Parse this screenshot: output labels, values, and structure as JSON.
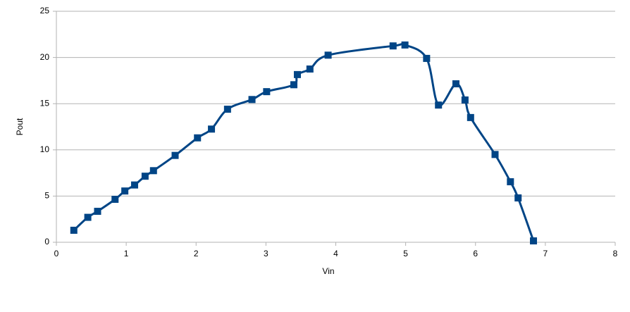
{
  "chart_data": {
    "type": "line",
    "x_label": "Vin",
    "y_label": "Pout",
    "x": [
      0.25,
      0.45,
      0.59,
      0.84,
      0.98,
      1.12,
      1.27,
      1.39,
      1.7,
      2.02,
      2.22,
      2.45,
      2.8,
      3.01,
      3.4,
      3.45,
      3.63,
      3.89,
      4.82,
      4.99,
      5.3,
      5.47,
      5.72,
      5.85,
      5.93,
      6.28,
      6.5,
      6.61,
      6.83
    ],
    "series": [
      {
        "color": "#004586",
        "values": [
          1.3,
          2.7,
          3.35,
          4.65,
          5.55,
          6.2,
          7.15,
          7.75,
          9.4,
          11.3,
          12.25,
          14.4,
          15.45,
          16.3,
          17.05,
          18.15,
          18.75,
          20.25,
          21.25,
          21.35,
          19.9,
          14.85,
          17.15,
          15.4,
          13.5,
          9.5,
          6.55,
          4.8,
          0.15
        ]
      }
    ],
    "xlim": [
      0,
      8
    ],
    "xticks": [
      0,
      1,
      2,
      3,
      4,
      5,
      6,
      7,
      8
    ],
    "ylim": [
      0,
      25
    ],
    "yticks": [
      0,
      5,
      10,
      15,
      20,
      25
    ],
    "grid": true
  }
}
